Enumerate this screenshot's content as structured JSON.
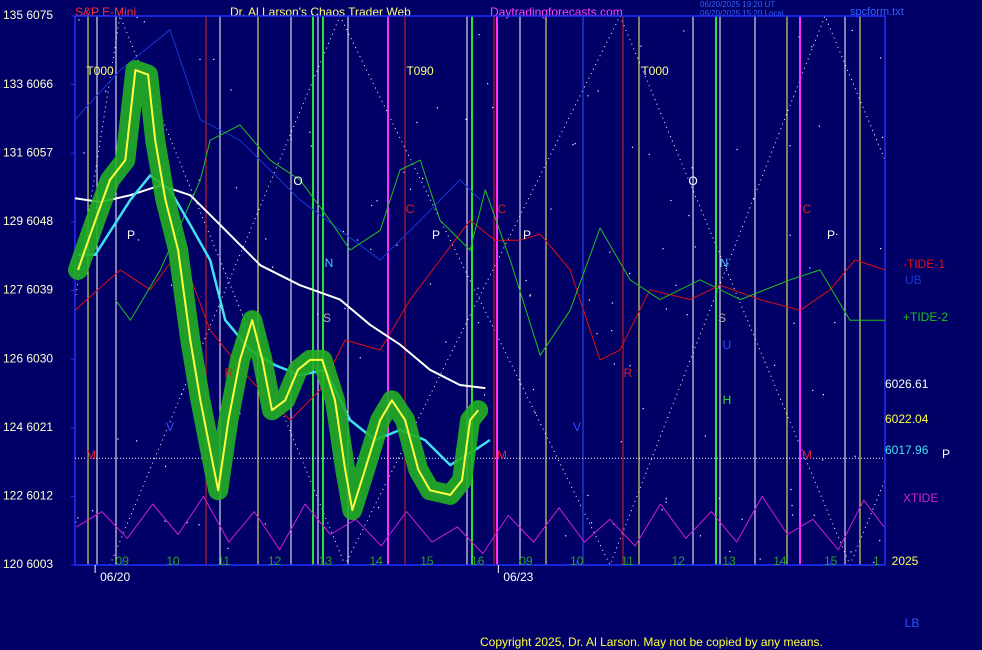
{
  "chart_data": {
    "type": "line",
    "title": "S&P E-Mini",
    "subtitle": "Dr. Al Larson's Chaos Trader Web",
    "website": "Daytradingforecasts.com",
    "timestamps": [
      "06/20/2025 19:20 UT",
      "06/20/2025 15:20 Local"
    ],
    "file_name": "spcform.txt",
    "copyright": "Copyright 2025, Dr. Al Larson. May not be copied by any means.",
    "xlim": [
      -0.93,
      15.02
    ],
    "ylim": [
      6003,
      6075
    ],
    "yticks": [
      {
        "value": 6075,
        "label": "135 6075"
      },
      {
        "value": 6066,
        "label": "133 6066"
      },
      {
        "value": 6057,
        "label": "131 6057"
      },
      {
        "value": 6048,
        "label": "129 6048"
      },
      {
        "value": 6039,
        "label": "127 6039"
      },
      {
        "value": 6030,
        "label": "126 6030"
      },
      {
        "value": 6021,
        "label": "124 6021"
      },
      {
        "value": 6012,
        "label": "122 6012"
      },
      {
        "value": 6003,
        "label": "120 6003"
      }
    ],
    "xticks": [
      {
        "value": 0,
        "label": "09"
      },
      {
        "value": 1,
        "label": "10"
      },
      {
        "value": 2,
        "label": "11"
      },
      {
        "value": 3,
        "label": "12"
      },
      {
        "value": 4,
        "label": "13"
      },
      {
        "value": 5,
        "label": "14"
      },
      {
        "value": 6,
        "label": "15"
      },
      {
        "value": 7,
        "label": "16"
      },
      {
        "value": 7.95,
        "label": "09"
      },
      {
        "value": 8.95,
        "label": "10"
      },
      {
        "value": 9.95,
        "label": "11"
      },
      {
        "value": 10.95,
        "label": "12"
      },
      {
        "value": 11.95,
        "label": "13"
      },
      {
        "value": 12.95,
        "label": "14"
      },
      {
        "value": 13.95,
        "label": "15"
      },
      {
        "value": 14.85,
        "label": "1"
      }
    ],
    "date_ticks": [
      {
        "value": -0.14,
        "label": "06/20"
      },
      {
        "value": 7.8,
        "label": "06/23"
      }
    ],
    "reference_line": 6017,
    "highlight_color": "#22b022",
    "series": [
      {
        "name": "-TIDE-1",
        "color": "#e01010",
        "x": [
          -0.93,
          -0.04,
          0.55,
          1.14,
          1.73,
          2.52,
          3.31,
          3.9,
          4.39,
          5.08,
          5.67,
          6.26,
          6.85,
          7.34,
          7.83,
          8.23,
          8.82,
          9.41,
          9.8,
          10.39,
          11.18,
          11.77,
          12.56,
          13.35,
          13.94,
          14.43,
          15.02
        ],
        "values": [
          6036.4,
          6041.7,
          6039.1,
          6044.3,
          6033.8,
          6027.3,
          6022.0,
          6026.0,
          6032.5,
          6031.2,
          6037.8,
          6043.0,
          6048.2,
          6045.6,
          6045.6,
          6046.4,
          6041.7,
          6029.9,
          6031.2,
          6039.1,
          6037.8,
          6039.7,
          6037.8,
          6036.4,
          6039.1,
          6043.0,
          6041.7
        ]
      },
      {
        "name": "UB",
        "color": "#1838d0",
        "x": [
          -0.93,
          -0.04,
          0.94,
          1.54,
          2.32,
          2.91,
          3.5,
          4.29,
          5.08,
          5.87,
          6.65,
          7.05
        ],
        "values": [
          6061.4,
          6067.9,
          6073.2,
          6061.4,
          6058.7,
          6054.8,
          6050.9,
          6046.9,
          6043.0,
          6048.2,
          6053.5,
          6050.9
        ]
      },
      {
        "name": "+TIDE-2",
        "color": "#20c020",
        "x": [
          -0.14,
          0.16,
          0.75,
          1.54,
          1.73,
          2.32,
          2.91,
          3.5,
          4.09,
          4.49,
          5.08,
          5.47,
          5.87,
          6.26,
          6.85,
          7.15,
          7.64,
          8.23,
          8.82,
          9.41,
          10.0,
          10.59,
          11.38,
          12.17,
          13.15,
          13.74,
          14.33,
          15.02
        ],
        "values": [
          6037.8,
          6035.1,
          6041.7,
          6053.5,
          6058.7,
          6060.7,
          6056.1,
          6053.5,
          6048.2,
          6044.3,
          6046.9,
          6054.8,
          6056.1,
          6048.2,
          6044.3,
          6052.2,
          6043.0,
          6030.5,
          6036.4,
          6047.2,
          6040.4,
          6037.8,
          6040.4,
          6037.8,
          6040.4,
          6041.7,
          6035.1,
          6035.1
        ]
      },
      {
        "name": "XTIDE",
        "color": "#d020d0",
        "x": [
          -0.9,
          -0.4,
          0.1,
          0.6,
          1.1,
          1.6,
          2.1,
          2.6,
          3.1,
          3.6,
          4.1,
          4.6,
          5.1,
          5.6,
          6.1,
          6.6,
          7.1,
          7.6,
          8.1,
          8.6,
          9.1,
          9.6,
          10.1,
          10.6,
          11.1,
          11.6,
          12.1,
          12.6,
          13.1,
          13.6,
          14.1,
          14.6,
          15.0
        ],
        "values": [
          6008,
          6010,
          6006.5,
          6011,
          6007,
          6012,
          6006,
          6010,
          6005,
          6011,
          6007,
          6009,
          6005.5,
          6010,
          6006,
          6008,
          6004.5,
          6009.5,
          6006,
          6010.5,
          6006,
          6009,
          6005.5,
          6011,
          6006.5,
          6010,
          6006,
          6012,
          6007,
          6009,
          6005,
          6011.5,
          6008
        ]
      },
      {
        "color": "#ffffff",
        "last_value": 6026.61,
        "x": [
          -0.93,
          -0.43,
          0.16,
          0.75,
          1.34,
          1.93,
          2.72,
          3.5,
          4.29,
          4.88,
          5.47,
          6.06,
          6.65,
          7.15
        ],
        "values": [
          6051.1,
          6050.6,
          6051.5,
          6052.8,
          6051.5,
          6047.6,
          6042.3,
          6039.7,
          6037.8,
          6034.5,
          6031.9,
          6028.6,
          6026.6,
          6026.2
        ]
      },
      {
        "color": "#40e0f0",
        "last_value": 6017.96,
        "x": [
          -0.87,
          -0.53,
          0.16,
          0.55,
          0.94,
          1.34,
          1.73,
          2.03,
          2.52,
          3.01,
          3.5,
          4.0,
          4.49,
          4.98,
          5.47,
          5.96,
          6.46,
          6.95,
          7.24
        ],
        "values": [
          6043.7,
          6043.7,
          6050.9,
          6054.1,
          6052.2,
          6047.6,
          6043.0,
          6035.1,
          6031.2,
          6029.2,
          6027.9,
          6028.6,
          6022.0,
          6019.4,
          6020.7,
          6019.4,
          6016.1,
          6018.1,
          6019.4
        ]
      },
      {
        "color": "#ffff40",
        "last_value": 6022.04,
        "x": [
          -0.87,
          -0.53,
          -0.24,
          0.06,
          0.26,
          0.51,
          0.65,
          0.85,
          1.1,
          1.34,
          1.54,
          1.77,
          1.89,
          2.09,
          2.32,
          2.56,
          2.76,
          2.95,
          3.21,
          3.46,
          3.7,
          3.94,
          4.19,
          4.39,
          4.53,
          4.78,
          5.08,
          5.31,
          5.57,
          5.83,
          6.06,
          6.46,
          6.69,
          6.85,
          7.01
        ],
        "values": [
          6041.7,
          6048.2,
          6053.5,
          6056.1,
          6067.9,
          6067.3,
          6058.7,
          6050.9,
          6044.3,
          6032.5,
          6024.6,
          6016.8,
          6012.8,
          6022.0,
          6029.9,
          6035.1,
          6029.9,
          6023.3,
          6024.6,
          6028.6,
          6029.9,
          6029.9,
          6024.6,
          6015.5,
          6010.2,
          6015.5,
          6022.0,
          6024.6,
          6022.0,
          6015.5,
          6012.8,
          6012.2,
          6014.1,
          6022.0,
          6023.3
        ]
      }
    ],
    "annotations": [
      {
        "text": "T000",
        "color": "#ffff80"
      },
      {
        "text": "T090",
        "color": "#ffff80"
      },
      {
        "text": "T000",
        "color": "#ffff80"
      },
      {
        "text": "O",
        "color": "#ffffff"
      },
      {
        "text": "O",
        "color": "#ffffff"
      },
      {
        "text": "P",
        "color": "#ffffff"
      },
      {
        "text": "P",
        "color": "#ffffff"
      },
      {
        "text": "P",
        "color": "#ffffff"
      },
      {
        "text": "P",
        "color": "#ffffff"
      },
      {
        "text": "C",
        "color": "#e02020"
      },
      {
        "text": "C",
        "color": "#e02020"
      },
      {
        "text": "C",
        "color": "#e02020"
      },
      {
        "text": "N",
        "color": "#50c0ff"
      },
      {
        "text": "N",
        "color": "#50c0ff"
      },
      {
        "text": "S",
        "color": "#b0b0b0"
      },
      {
        "text": "S",
        "color": "#b0b0b0"
      },
      {
        "text": "M",
        "color": "#e02040"
      },
      {
        "text": "M",
        "color": "#e02040"
      },
      {
        "text": "M",
        "color": "#e02040"
      },
      {
        "text": "R",
        "color": "#e02020"
      },
      {
        "text": "H",
        "color": "#30e030"
      },
      {
        "text": "V",
        "color": "#3050ff"
      },
      {
        "text": "V",
        "color": "#3050ff"
      },
      {
        "text": "P",
        "color": "#ffffff"
      },
      {
        "text": "LB",
        "color": "#3050ff"
      },
      {
        "text": "2025",
        "color": "#ffff60"
      },
      {
        "text": "U",
        "color": "#3050ff"
      },
      {
        "text": "R",
        "color": "#e02020"
      }
    ]
  }
}
